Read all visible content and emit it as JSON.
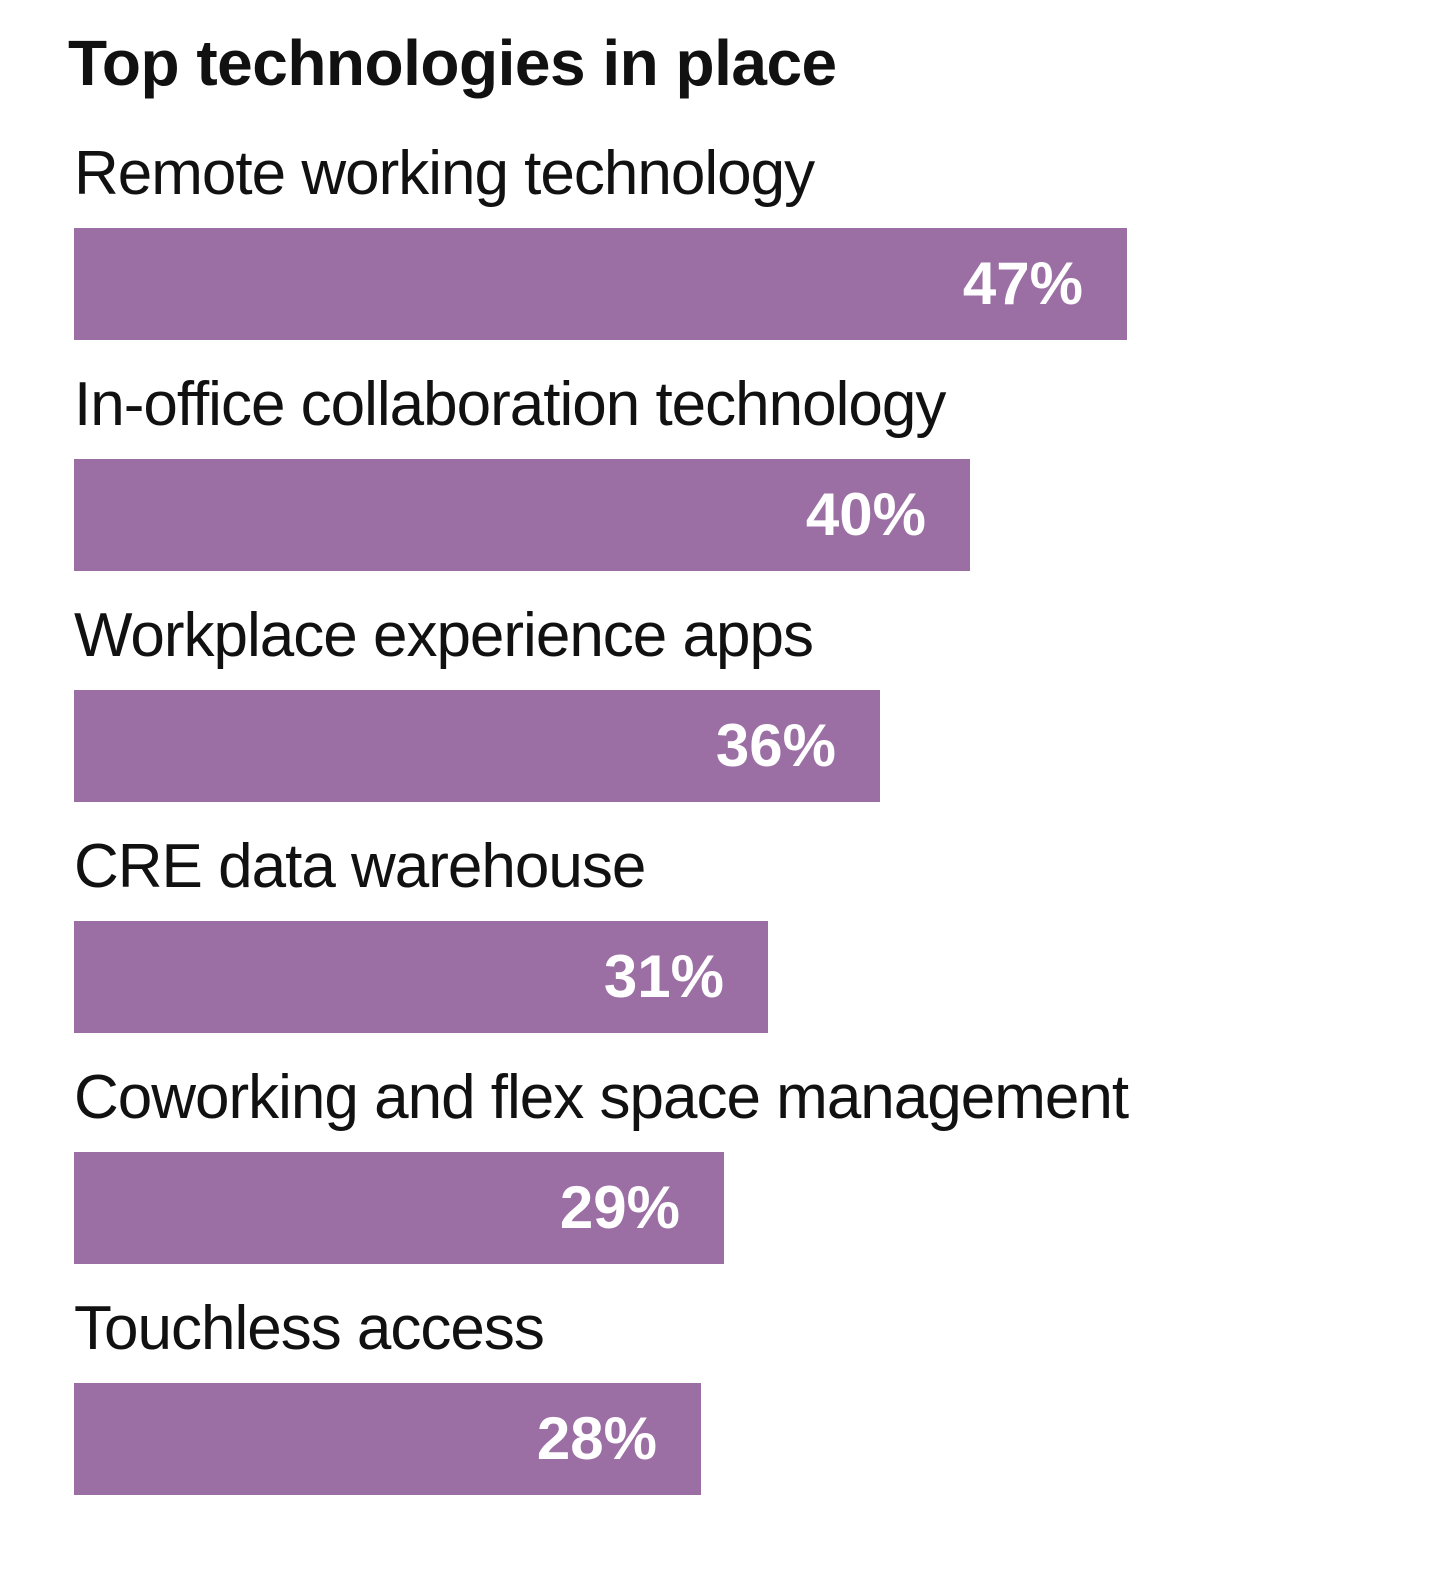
{
  "chart_data": {
    "type": "bar",
    "orientation": "horizontal",
    "title": "Top technologies in place",
    "categories": [
      "Remote working technology",
      "In-office collaboration technology",
      "Workplace experience apps",
      "CRE data warehouse",
      "Coworking and flex space management",
      "Touchless access"
    ],
    "values": [
      47,
      40,
      36,
      31,
      29,
      28
    ],
    "value_labels": [
      "47%",
      "40%",
      "36%",
      "31%",
      "29%",
      "28%"
    ],
    "unit": "%",
    "xlim": [
      0,
      100
    ],
    "grid": false,
    "legend": "none",
    "bar_color": "#9b6fa4",
    "label_color": "#ffffff"
  }
}
